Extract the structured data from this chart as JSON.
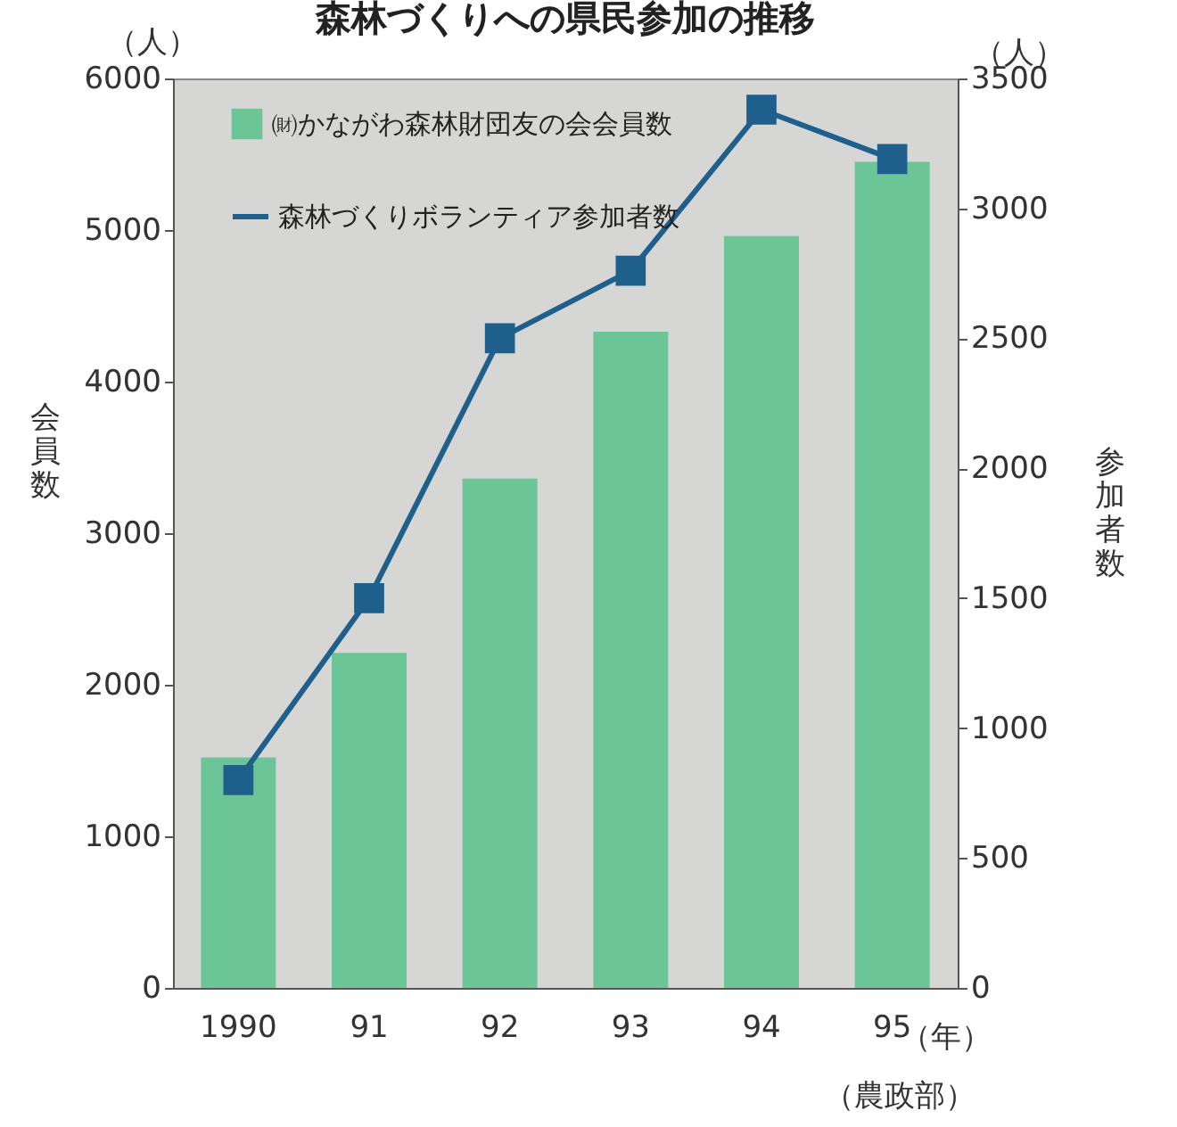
{
  "chart_data": {
    "type": "bar",
    "title": "森林づくりへの県民参加の推移",
    "categories": [
      "1990",
      "91",
      "92",
      "93",
      "94",
      "95"
    ],
    "series": [
      {
        "name": "㈶かながわ森林財団友の会会員数",
        "color": "#6cc596",
        "values": [
          1520,
          2210,
          3360,
          4330,
          4960,
          5450
        ]
      },
      {
        "name": "森林づくりボランティア参加者数",
        "type": "line",
        "axis": "y2",
        "color": "#1f5f8b",
        "values": [
          800,
          1500,
          2500,
          2760,
          3380,
          3190
        ]
      }
    ],
    "ylabel": "会員数",
    "y2label": "参加者数",
    "ylim": [
      0,
      6000
    ],
    "yticks": [
      0,
      1000,
      2000,
      3000,
      4000,
      5000,
      6000
    ],
    "y2lim": [
      0,
      3500
    ],
    "y2ticks": [
      0,
      500,
      1000,
      1500,
      2000,
      2500,
      3000,
      3500
    ],
    "annotations": [
      "（人）",
      "（人）",
      "（年）",
      "（農政部）"
    ],
    "grid": false,
    "legend": "top left",
    "marker": "square",
    "line_style": "solid"
  }
}
